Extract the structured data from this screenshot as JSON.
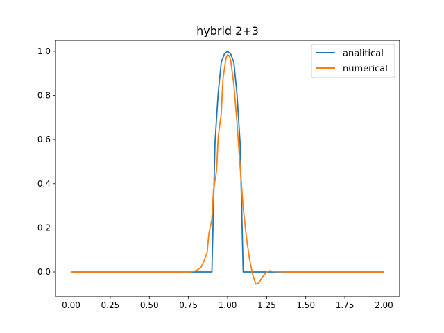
{
  "chart_data": {
    "type": "line",
    "title": "hybrid 2+3",
    "xlabel": "",
    "ylabel": "",
    "xlim": [
      -0.1,
      2.1
    ],
    "ylim": [
      -0.11,
      1.05
    ],
    "xticks": [
      "0.00",
      "0.25",
      "0.50",
      "0.75",
      "1.00",
      "1.25",
      "1.50",
      "1.75",
      "2.00"
    ],
    "yticks": [
      "0.0",
      "0.2",
      "0.4",
      "0.6",
      "0.8",
      "1.0"
    ],
    "grid": false,
    "legend_position": "upper right",
    "series": [
      {
        "name": "analitical",
        "color": "#1f77b4",
        "points": [
          [
            0.0,
            0.0
          ],
          [
            0.9,
            0.0
          ],
          [
            0.9,
            0.0
          ],
          [
            0.92,
            0.588
          ],
          [
            0.94,
            0.809
          ],
          [
            0.96,
            0.951
          ],
          [
            0.98,
            0.988
          ],
          [
            1.0,
            1.0
          ],
          [
            1.02,
            0.988
          ],
          [
            1.04,
            0.951
          ],
          [
            1.06,
            0.809
          ],
          [
            1.08,
            0.588
          ],
          [
            1.1,
            0.0
          ],
          [
            1.1,
            0.0
          ],
          [
            2.0,
            0.0
          ]
        ]
      },
      {
        "name": "numerical",
        "color": "#ff7f0e",
        "points": [
          [
            0.0,
            0.0
          ],
          [
            0.76,
            0.0
          ],
          [
            0.8,
            0.006
          ],
          [
            0.83,
            0.02
          ],
          [
            0.85,
            0.05
          ],
          [
            0.87,
            0.09
          ],
          [
            0.88,
            0.17
          ],
          [
            0.9,
            0.24
          ],
          [
            0.91,
            0.37
          ],
          [
            0.93,
            0.46
          ],
          [
            0.94,
            0.61
          ],
          [
            0.96,
            0.72
          ],
          [
            0.97,
            0.87
          ],
          [
            0.98,
            0.92
          ],
          [
            0.99,
            0.97
          ],
          [
            1.0,
            0.985
          ],
          [
            1.01,
            0.98
          ],
          [
            1.02,
            0.96
          ],
          [
            1.04,
            0.85
          ],
          [
            1.06,
            0.68
          ],
          [
            1.08,
            0.48
          ],
          [
            1.1,
            0.29
          ],
          [
            1.12,
            0.16
          ],
          [
            1.14,
            0.06
          ],
          [
            1.16,
            -0.01
          ],
          [
            1.18,
            -0.055
          ],
          [
            1.2,
            -0.05
          ],
          [
            1.22,
            -0.025
          ],
          [
            1.25,
            0.0
          ],
          [
            1.27,
            0.005
          ],
          [
            1.3,
            0.002
          ],
          [
            1.4,
            0.0
          ],
          [
            2.0,
            0.0
          ]
        ]
      }
    ]
  }
}
